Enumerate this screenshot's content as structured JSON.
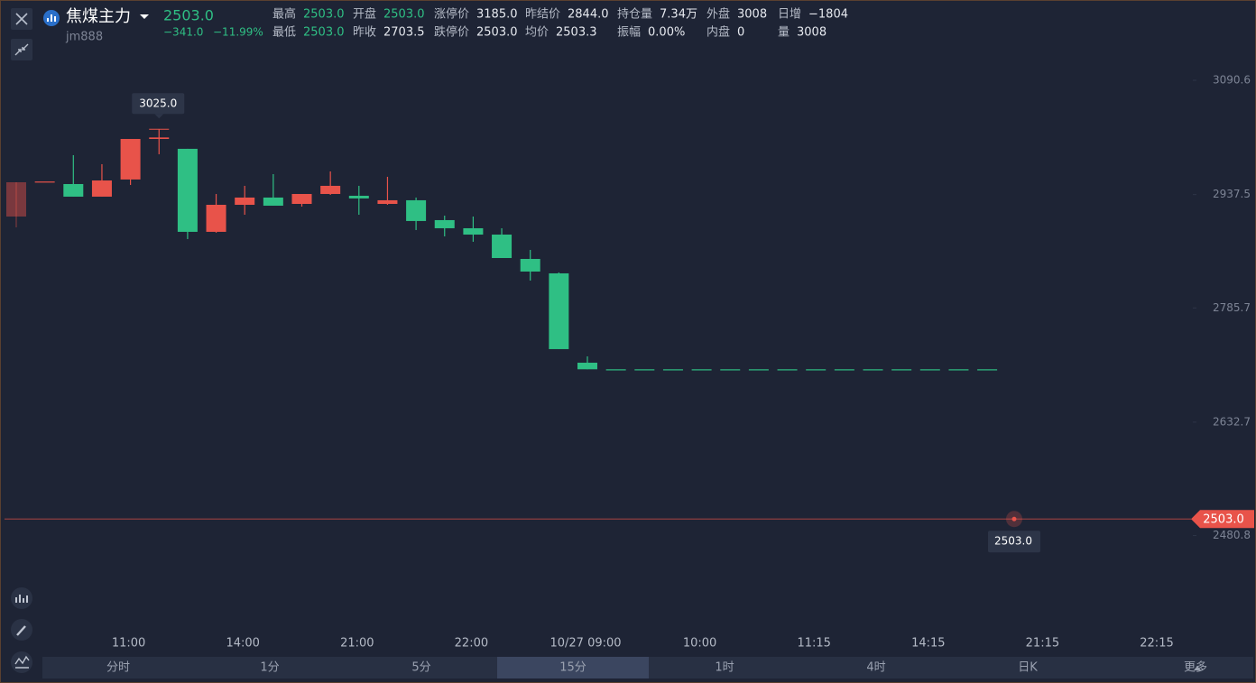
{
  "header": {
    "name": "焦煤主力",
    "code": "jm888",
    "price": "2503.0",
    "change": "−341.0",
    "change_pct": "−11.99%"
  },
  "quote": {
    "rows": [
      [
        {
          "label": "最高",
          "value": "2503.0",
          "color": "#2fbf84"
        },
        {
          "label": "开盘",
          "value": "2503.0",
          "color": "#2fbf84"
        },
        {
          "label": "涨停价",
          "value": "3185.0"
        },
        {
          "label": "昨结价",
          "value": "2844.0"
        },
        {
          "label": "持仓量",
          "value": "7.34万"
        },
        {
          "label": "外盘",
          "value": "3008"
        },
        {
          "label": "日增",
          "value": "−1804"
        }
      ],
      [
        {
          "label": "最低",
          "value": "2503.0",
          "color": "#2fbf84"
        },
        {
          "label": "昨收",
          "value": "2703.5"
        },
        {
          "label": "跌停价",
          "value": "2503.0"
        },
        {
          "label": "均价",
          "value": "2503.3"
        },
        {
          "label": "振幅",
          "value": "0.00%"
        },
        {
          "label": "内盘",
          "value": "0"
        },
        {
          "label": "量",
          "value": "3008"
        }
      ]
    ]
  },
  "periods": [
    "分时",
    "1分",
    "5分",
    "15分",
    "1时",
    "4时",
    "日K",
    "更多"
  ],
  "active_period": 3,
  "chart_data": {
    "type": "candlestick",
    "categories": [
      null,
      null,
      null,
      null,
      "11:00",
      null,
      null,
      null,
      "14:00",
      null,
      null,
      null,
      "21:00",
      null,
      null,
      null,
      "22:00",
      null,
      null,
      null,
      "10/27 09:00",
      null,
      null,
      null,
      "10:00",
      null,
      null,
      null,
      "11:15",
      null,
      null,
      null,
      "14:15",
      null,
      null,
      null,
      "21:15",
      null,
      null,
      null,
      "22:15",
      null
    ],
    "open": [
      2908.1,
      2955,
      2951.6,
      2934.7,
      2957.7,
      3012,
      2998.8,
      2887.6,
      2923.8,
      2933.5,
      2925,
      2938.3,
      2935.9,
      2925,
      2929.9,
      2903.3,
      2892.4,
      2883.9,
      2851.3,
      2832,
      2712.3,
      2703.5,
      2703.5,
      2703.5,
      2703.5,
      2703.5,
      2703.5,
      2703.5,
      2703.5,
      2703.5,
      2703.5,
      2703.5,
      2703.5,
      2703.5,
      2703.5,
      null,
      null,
      null,
      null,
      null,
      null,
      null
    ],
    "high": [
      2954,
      2955,
      2990.3,
      2978.2,
      3012,
      3025,
      2998.8,
      2938.3,
      2949.2,
      2964.9,
      2938.3,
      2968.5,
      2949.2,
      2961.3,
      2933.5,
      2909.3,
      2908.1,
      2892.4,
      2863.4,
      2833.2,
      2720.8,
      2703.5,
      2703.5,
      2703.5,
      2703.5,
      2703.5,
      2703.5,
      2703.5,
      2703.5,
      2703.5,
      2703.5,
      2703.5,
      2703.5,
      2703.5,
      2703.5,
      null,
      null,
      null,
      null,
      null,
      null,
      null
    ],
    "low": [
      2893.6,
      2955,
      2934.7,
      2934.7,
      2950.4,
      2991.5,
      2877.9,
      2886.4,
      2910.5,
      2922.6,
      2921.4,
      2937.1,
      2910.5,
      2923.8,
      2890,
      2881.5,
      2874.3,
      2852.5,
      2822.3,
      2730.5,
      2703.5,
      2703.5,
      2703.5,
      2703.5,
      2703.5,
      2703.5,
      2703.5,
      2703.5,
      2703.5,
      2703.5,
      2703.5,
      2703.5,
      2703.5,
      2703.5,
      2703.5,
      null,
      null,
      null,
      null,
      null,
      null,
      null
    ],
    "close": [
      2954,
      2955,
      2934.7,
      2956.4,
      3012,
      3014,
      2887.6,
      2923.8,
      2933.5,
      2922.6,
      2938.3,
      2949.2,
      2932.3,
      2929.9,
      2902.1,
      2892.4,
      2883.9,
      2852.5,
      2834.4,
      2730.5,
      2703.5,
      2703.5,
      2703.5,
      2703.5,
      2703.5,
      2703.5,
      2703.5,
      2703.5,
      2703.5,
      2703.5,
      2703.5,
      2703.5,
      2703.5,
      2703.5,
      2703.5,
      null,
      null,
      null,
      null,
      null,
      null,
      null
    ],
    "ylim": [
      2352.2,
      3125.6
    ],
    "yticks": [
      3090.6,
      2937.5,
      2785.7,
      2632.7,
      2480.8
    ],
    "up_color": "#e8534a",
    "down_color": "#2fbf84",
    "max_marker": {
      "value": 3025,
      "label": "3025.0"
    },
    "last_price": {
      "value": 2503,
      "label": "2503.0"
    }
  }
}
